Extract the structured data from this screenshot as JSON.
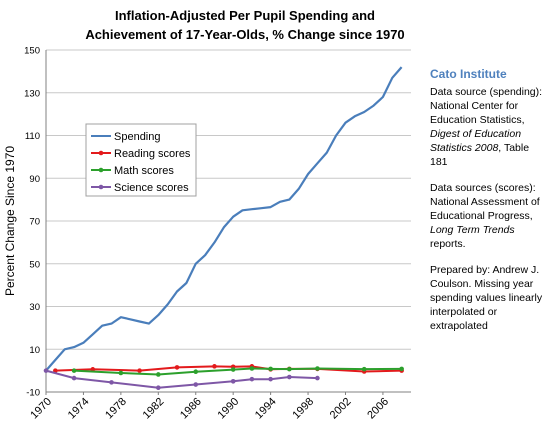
{
  "title_line1": "Inflation-Adjusted Per Pupil Spending and",
  "title_line2": "Achievement of 17-Year-Olds,  % Change since 1970",
  "sidebar": {
    "brand": "Cato Institute",
    "spending_source": {
      "prefix": "Data source (spending): National Center for Education Statistics, ",
      "italic": "Digest of Education Statistics 2008",
      "suffix": ", Table 181"
    },
    "scores_source": {
      "prefix": "Data sources (scores): National Assessment of Educational Progress, ",
      "italic": "Long Term Trends",
      "suffix": " reports."
    },
    "prepared_by": "Prepared by: Andrew J. Coulson. Missing year spending values linearly interpolated or extrapolated"
  },
  "colors": {
    "spending": "#4a7ebb",
    "reading": "#e31a1c",
    "math": "#2ca02c",
    "science": "#7e57a6",
    "grid": "#c8c8c8",
    "axis": "#808080"
  },
  "chart_data": {
    "type": "line",
    "title": "Inflation-Adjusted Per Pupil Spending and Achievement of 17-Year-Olds,  % Change since 1970",
    "xlabel": "",
    "ylabel": "Percent Change Since 1970",
    "xlim": [
      1970,
      2009
    ],
    "ylim": [
      -10,
      150
    ],
    "yticks": [
      -10,
      10,
      30,
      50,
      70,
      90,
      110,
      130,
      150
    ],
    "xticks": [
      1970,
      1974,
      1978,
      1982,
      1986,
      1990,
      1994,
      1998,
      2002,
      2006
    ],
    "grid": "horizontal",
    "legend": "upper-left",
    "series": [
      {
        "name": "Spending",
        "x": [
          1970,
          1971,
          1972,
          1973,
          1974,
          1975,
          1976,
          1977,
          1978,
          1979,
          1980,
          1981,
          1982,
          1983,
          1984,
          1985,
          1986,
          1987,
          1988,
          1989,
          1990,
          1991,
          1992,
          1993,
          1994,
          1995,
          1996,
          1997,
          1998,
          1999,
          2000,
          2001,
          2002,
          2003,
          2004,
          2005,
          2006,
          2007,
          2008
        ],
        "values": [
          0,
          5,
          10,
          11,
          13,
          17,
          21,
          22,
          25,
          24,
          23,
          22,
          26,
          31,
          37,
          41,
          50,
          54,
          60,
          67,
          72,
          75,
          75.5,
          76,
          76.5,
          79,
          80,
          85,
          92,
          97,
          102,
          110,
          116,
          119,
          121,
          124,
          128,
          137,
          142
        ],
        "markers": false
      },
      {
        "name": "Reading scores",
        "x": [
          1971,
          1975,
          1980,
          1984,
          1988,
          1990,
          1992,
          1994,
          1996,
          1999,
          2004,
          2008
        ],
        "values": [
          0,
          0.6,
          0,
          1.5,
          2,
          1.8,
          2,
          0.6,
          0.8,
          0.8,
          -0.4,
          0
        ],
        "markers": true
      },
      {
        "name": "Math scores",
        "x": [
          1973,
          1978,
          1982,
          1986,
          1990,
          1992,
          1994,
          1996,
          1999,
          2004,
          2008
        ],
        "values": [
          0,
          -1.1,
          -1.8,
          -0.5,
          0.5,
          1,
          0.8,
          0.7,
          1,
          0.7,
          0.8
        ],
        "markers": true
      },
      {
        "name": "Science scores",
        "x": [
          1970,
          1973,
          1977,
          1982,
          1986,
          1990,
          1992,
          1994,
          1996,
          1999
        ],
        "values": [
          0,
          -3.5,
          -5.5,
          -8,
          -6.5,
          -5,
          -4,
          -4,
          -3,
          -3.5
        ],
        "markers": true
      }
    ]
  }
}
